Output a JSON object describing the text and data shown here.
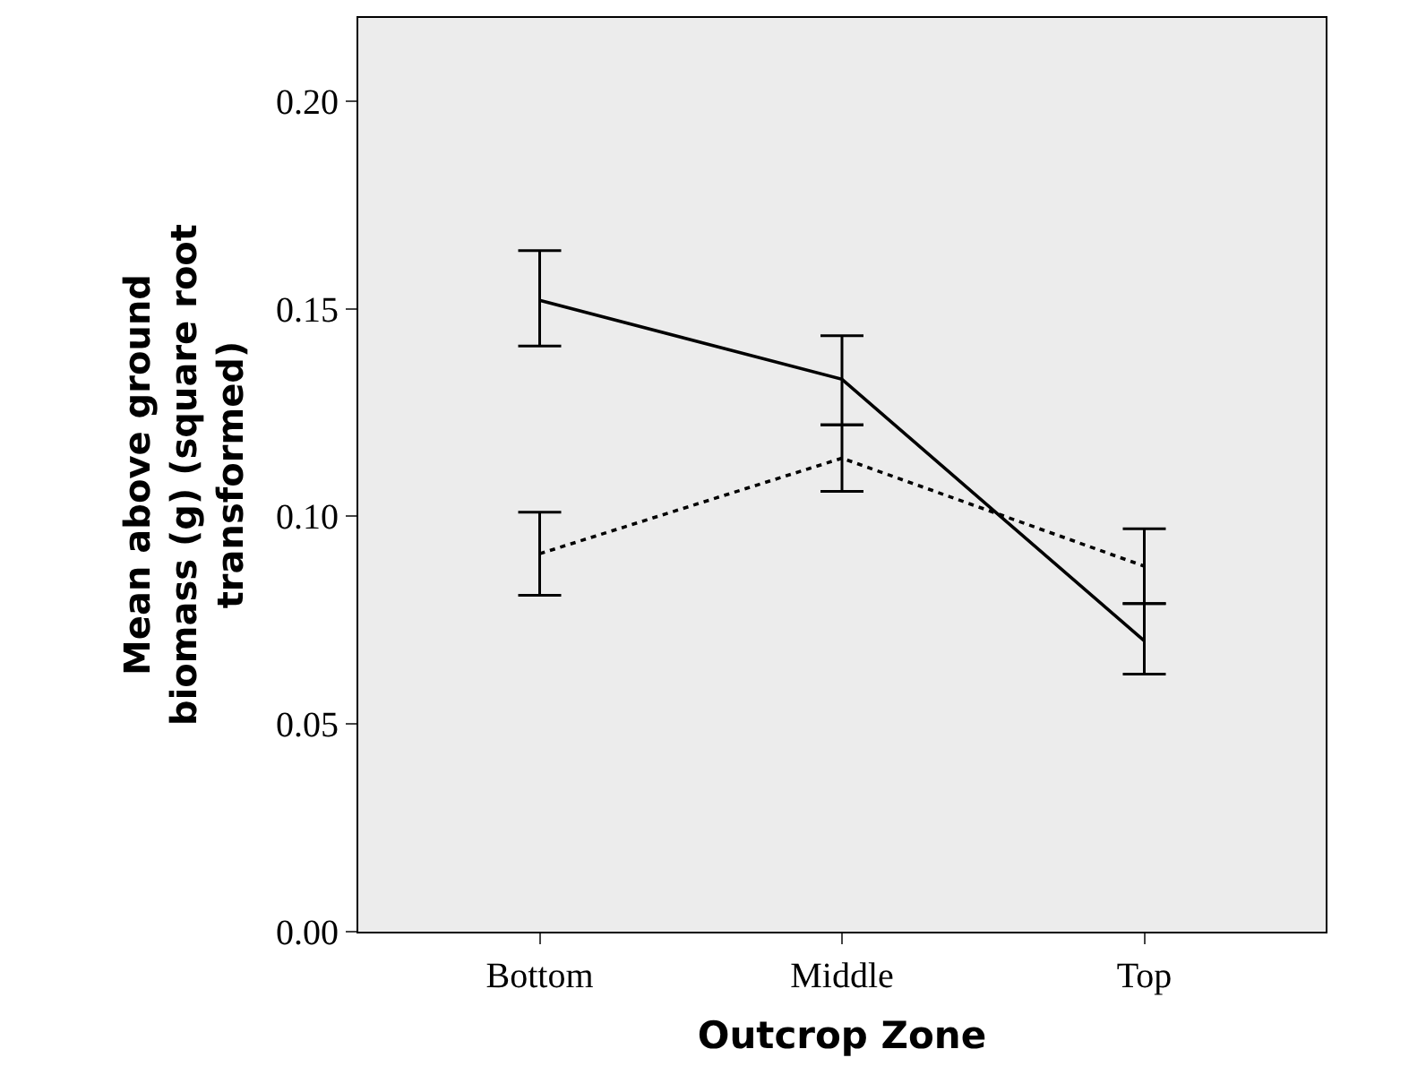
{
  "chart_data": {
    "type": "line",
    "xlabel": "Outcrop Zone",
    "ylabel": "Mean above ground biomass (g) (square root transformed)",
    "categories": [
      "Bottom",
      "Middle",
      "Top"
    ],
    "series": [
      {
        "color": "#000000",
        "line_style": "solid",
        "values": [
          0.152,
          0.133,
          0.07
        ],
        "errors": [
          [
            0.141,
            0.164
          ],
          [
            0.122,
            0.1435
          ],
          [
            0.062,
            0.079
          ]
        ]
      },
      {
        "color": "#000000",
        "line_style": "dotted",
        "values": [
          0.091,
          0.114,
          0.088
        ],
        "errors": [
          [
            0.081,
            0.101
          ],
          [
            0.106,
            0.122
          ],
          [
            0.079,
            0.097
          ]
        ]
      }
    ],
    "ylim": [
      0,
      0.22
    ],
    "yticks": [
      {
        "value": 0,
        "label": "0.00"
      },
      {
        "value": 0.05,
        "label": "0.05"
      },
      {
        "value": 0.1,
        "label": "0.10"
      },
      {
        "value": 0.15,
        "label": "0.15"
      },
      {
        "value": 0.2,
        "label": "0.20"
      }
    ],
    "grid": false,
    "marker": "none"
  }
}
